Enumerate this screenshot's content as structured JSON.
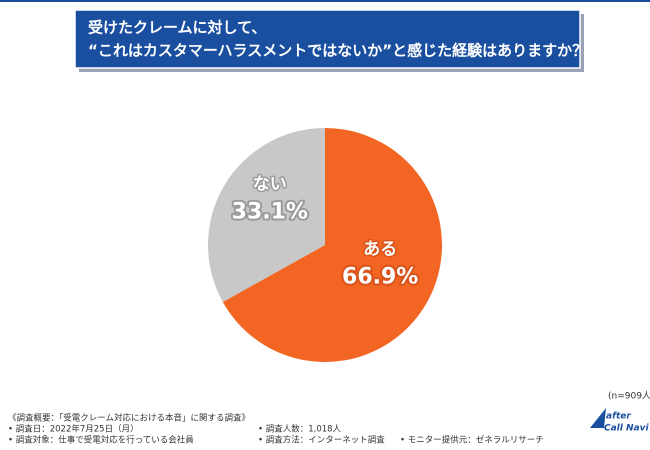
{
  "chart_data": {
    "type": "pie",
    "title": [
      "受けたクレームに対して、",
      "“これはカスタマーハラスメントではないか”と感じた経験はありますか？"
    ],
    "categories": [
      "ある",
      "ない"
    ],
    "values": [
      66.9,
      33.1
    ],
    "value_labels": [
      "66.9%",
      "33.1%"
    ],
    "colors": [
      "#f26522",
      "#c8c8c8"
    ],
    "label_strokes": [
      "#d9531a",
      "#9a9a9a"
    ],
    "sample_note": "(n=909人)",
    "notes": [
      "《調査概要：「受電クレーム対応における本音」に関する調査》",
      "• 調査日：2022年7月25日（月）",
      "• 調査対象：仕事で受電対応を行っている会社員",
      "• 調査人数：1,018人",
      "• 調査方法：インターネット調査",
      "• モニター提供元：ゼネラルリサーチ"
    ],
    "logo": [
      "after",
      "Call Navi"
    ]
  }
}
